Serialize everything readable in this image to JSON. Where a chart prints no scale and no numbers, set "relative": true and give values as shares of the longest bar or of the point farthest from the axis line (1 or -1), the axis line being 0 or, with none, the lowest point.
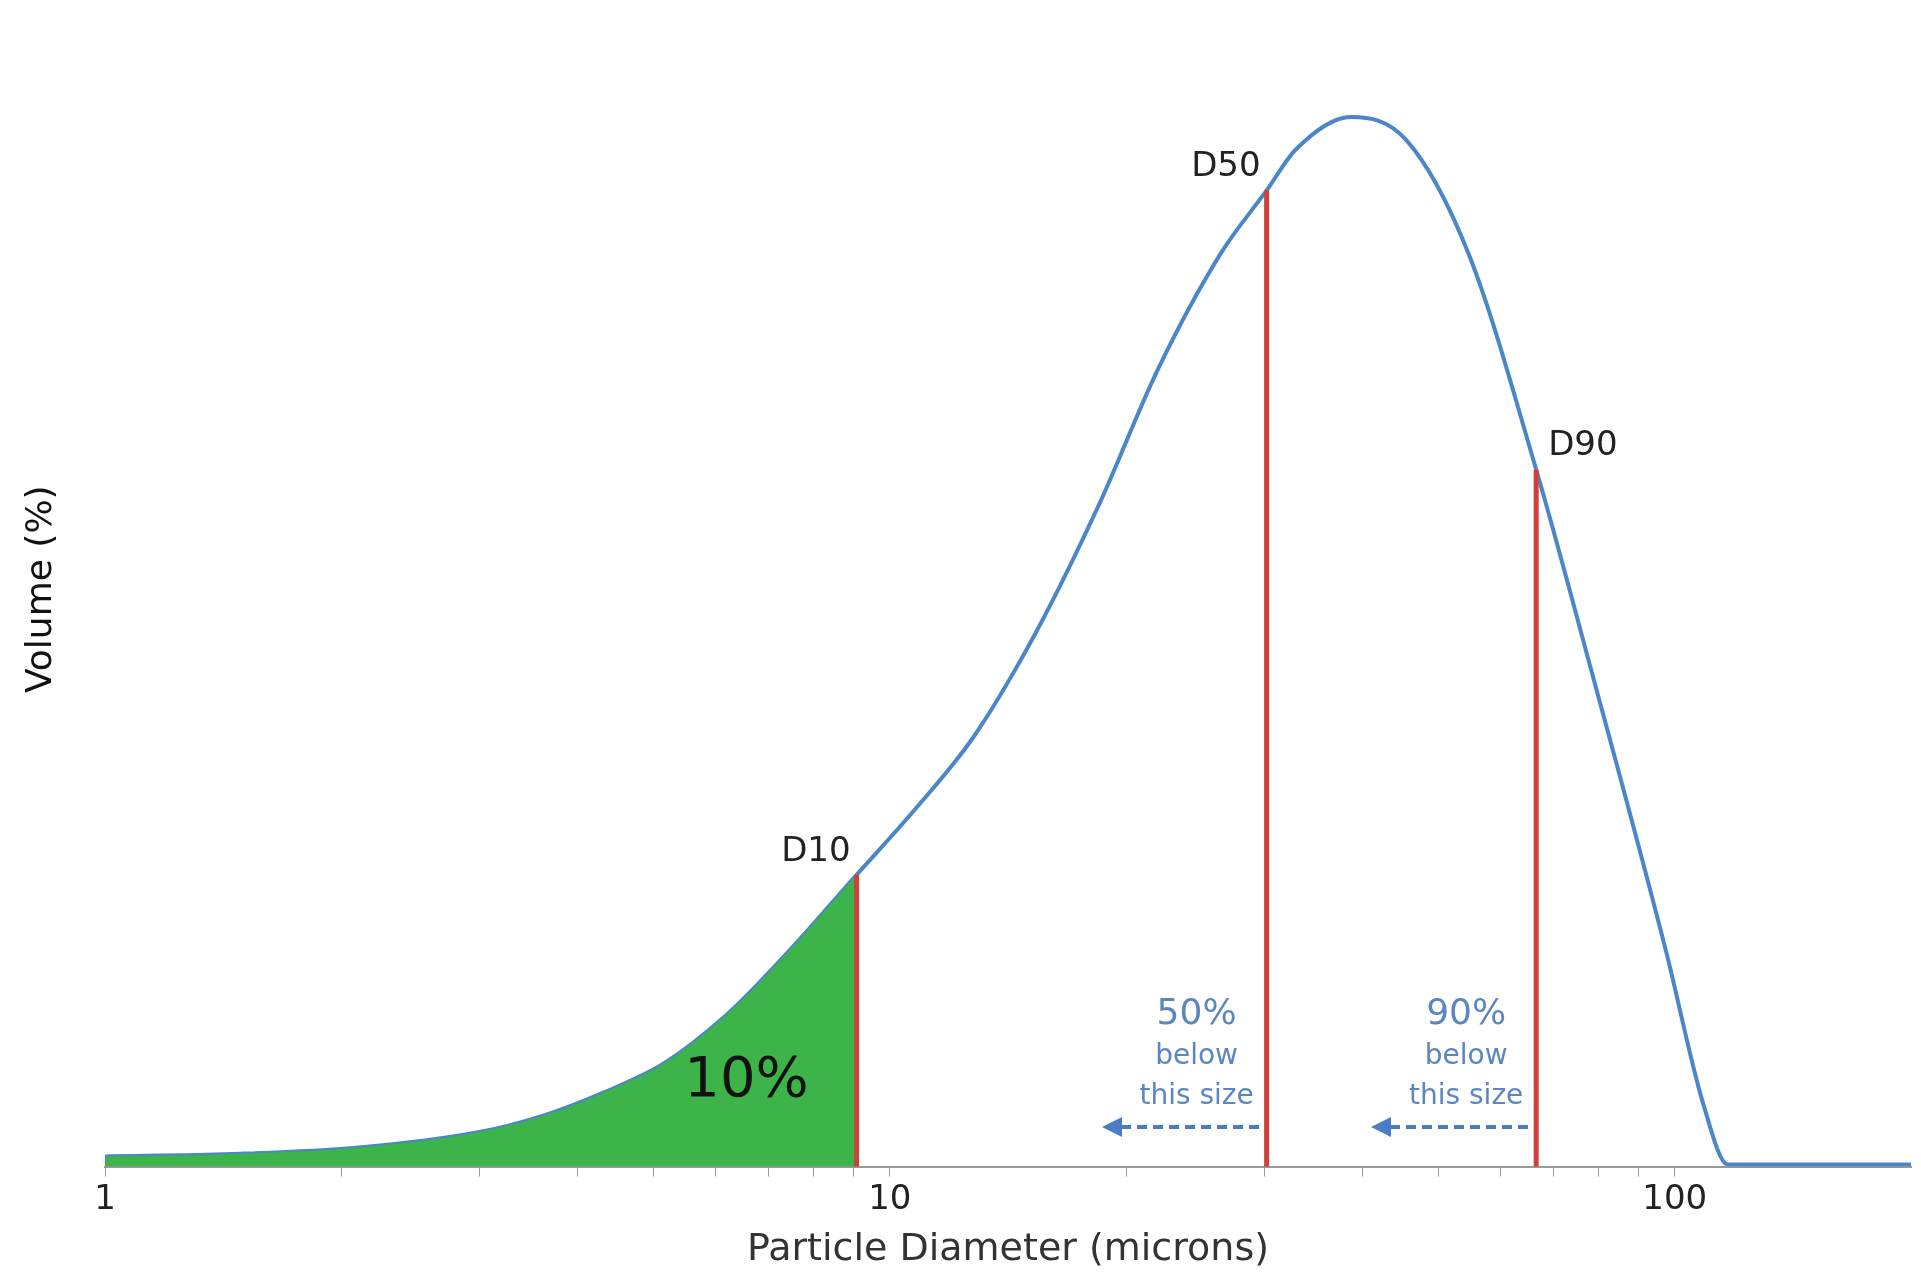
{
  "chart_data": {
    "type": "line",
    "xlabel": "Particle Diameter (microns)",
    "ylabel": "Volume (%)",
    "relative": true,
    "log": "x",
    "xlim": [
      1,
      200
    ],
    "xticks": [
      1,
      {
        "value": 2,
        "label": null
      },
      {
        "value": 3,
        "label": null
      },
      {
        "value": 4,
        "label": null
      },
      {
        "value": 5,
        "label": null
      },
      {
        "value": 6,
        "label": null
      },
      {
        "value": 7,
        "label": null
      },
      {
        "value": 8,
        "label": null
      },
      {
        "value": 9,
        "label": null
      },
      10,
      {
        "value": 20,
        "label": null
      },
      {
        "value": 30,
        "label": null
      },
      {
        "value": 40,
        "label": null
      },
      {
        "value": 50,
        "label": null
      },
      {
        "value": 60,
        "label": null
      },
      {
        "value": 70,
        "label": null
      },
      {
        "value": 80,
        "label": null
      },
      {
        "value": 90,
        "label": null
      },
      100
    ],
    "grid": false,
    "legend": false,
    "marker": "none",
    "series": [
      {
        "type": "area",
        "color": "#3cb44a",
        "x": [
          1,
          1.45,
          2.09,
          3.0,
          3.6,
          4.3,
          5.17,
          6.2,
          7.43,
          9.07
        ],
        "values": [
          0.0097,
          0.012,
          0.018,
          0.033,
          0.048,
          0.07,
          0.099,
          0.145,
          0.205,
          0.278
        ]
      },
      {
        "color": "#4a86c8",
        "x": [
          1,
          1.45,
          2.09,
          3.0,
          3.6,
          4.3,
          5.17,
          6.2,
          7.43,
          9.07,
          10.7,
          12.8,
          15.3,
          18.4,
          22.0,
          26.4,
          30.2,
          32.9,
          38.7,
          45.5,
          54.6,
          66.6,
          78.4,
          97.5,
          108.7,
          116.9,
          200
        ],
        "values": [
          0.0097,
          0.012,
          0.018,
          0.033,
          0.048,
          0.07,
          0.099,
          0.145,
          0.205,
          0.278,
          0.338,
          0.41,
          0.507,
          0.628,
          0.761,
          0.87,
          0.93,
          0.969,
          1.0,
          0.978,
          0.87,
          0.664,
          0.471,
          0.205,
          0.06,
          0.002,
          0.002
        ]
      }
    ],
    "ref_lines": [
      {
        "axis": "x",
        "value": 9.07,
        "label": "D10",
        "color": "#d0403a"
      },
      {
        "axis": "x",
        "value": 30.2,
        "label": "D50",
        "color": "#d0403a"
      },
      {
        "axis": "x",
        "value": 66.6,
        "label": "D90",
        "color": "#d0403a"
      }
    ],
    "annotations": [
      "10%",
      "50% below this size",
      "90% below this size"
    ]
  }
}
